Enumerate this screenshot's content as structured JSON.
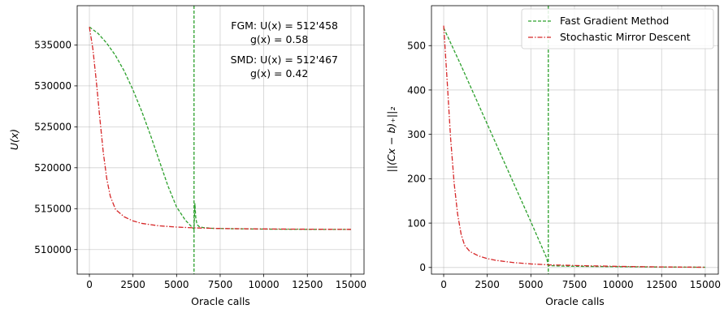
{
  "chart_data": [
    {
      "type": "line",
      "title": "",
      "xlabel": "Oracle calls",
      "ylabel": "U(x)",
      "xlim": [
        -700,
        15750
      ],
      "ylim": [
        507000,
        539800
      ],
      "xticks": [
        0,
        2500,
        5000,
        7500,
        10000,
        12500,
        15000
      ],
      "xtick_labels": [
        "0",
        "2500",
        "5000",
        "7500",
        "10000",
        "12500",
        "15000"
      ],
      "yticks": [
        510000,
        515000,
        520000,
        525000,
        530000,
        535000
      ],
      "ytick_labels": [
        "510000",
        "515000",
        "520000",
        "525000",
        "530000",
        "535000"
      ],
      "grid": true,
      "vline_x": 6000,
      "annotations": [
        {
          "line1": "FGM: U(x) = 512'458",
          "line2": "g(x) = 0.58"
        },
        {
          "line1": "SMD: U(x) = 512'467",
          "line2": "g(x) = 0.42"
        }
      ],
      "series": [
        {
          "name": "Fast Gradient Method",
          "color": "#2ca02c",
          "style": "dashed",
          "x": [
            0,
            500,
            1000,
            1500,
            2000,
            2500,
            3000,
            3500,
            4000,
            4500,
            5000,
            5500,
            5900,
            6000,
            6050,
            6100,
            6150,
            6200,
            6300,
            6500,
            7000,
            8000,
            10000,
            12500,
            15000
          ],
          "y": [
            537200,
            536400,
            535200,
            533700,
            531800,
            529500,
            526900,
            524000,
            520900,
            517800,
            515200,
            513600,
            512700,
            512500,
            515600,
            513900,
            513300,
            513000,
            512800,
            512700,
            512600,
            512550,
            512500,
            512470,
            512458
          ]
        },
        {
          "name": "Stochastic Mirror Descent",
          "color": "#d62728",
          "style": "dashdot",
          "x": [
            0,
            200,
            400,
            600,
            800,
            1000,
            1200,
            1500,
            2000,
            2500,
            3000,
            4000,
            5000,
            6000,
            7000,
            8000,
            10000,
            12500,
            15000
          ],
          "y": [
            537200,
            534500,
            530500,
            526000,
            521800,
            518600,
            516500,
            514900,
            514000,
            513500,
            513200,
            512900,
            512750,
            512650,
            512600,
            512560,
            512520,
            512490,
            512467
          ]
        }
      ]
    },
    {
      "type": "line",
      "title": "",
      "xlabel": "Oracle calls",
      "ylabel": "||(Cx − b)₊||₂",
      "xlim": [
        -700,
        15750
      ],
      "ylim": [
        -15,
        590
      ],
      "xticks": [
        0,
        2500,
        5000,
        7500,
        10000,
        12500,
        15000
      ],
      "xtick_labels": [
        "0",
        "2500",
        "5000",
        "7500",
        "10000",
        "12500",
        "15000"
      ],
      "yticks": [
        0,
        100,
        200,
        300,
        400,
        500
      ],
      "ytick_labels": [
        "0",
        "100",
        "200",
        "300",
        "400",
        "500"
      ],
      "grid": true,
      "vline_x": 6000,
      "legend": "top-right",
      "series": [
        {
          "name": "Fast Gradient Method",
          "color": "#2ca02c",
          "style": "dashed",
          "x": [
            0,
            1000,
            2000,
            3000,
            4000,
            5000,
            5900,
            6000,
            6100,
            7000,
            8000,
            10000,
            12500,
            15000
          ],
          "y": [
            540,
            455,
            367,
            279,
            191,
            103,
            22,
            5,
            4,
            3,
            2.5,
            1.8,
            1.0,
            0.58
          ]
        },
        {
          "name": "Stochastic Mirror Descent",
          "color": "#d62728",
          "style": "dashdot",
          "x": [
            0,
            200,
            400,
            600,
            800,
            1000,
            1200,
            1500,
            2000,
            2500,
            3000,
            4000,
            5000,
            6000,
            8000,
            10000,
            12500,
            15000
          ],
          "y": [
            545,
            420,
            290,
            190,
            120,
            75,
            50,
            36,
            26,
            20,
            16,
            11,
            8,
            6,
            4,
            2.5,
            1.2,
            0.42
          ]
        }
      ]
    }
  ]
}
